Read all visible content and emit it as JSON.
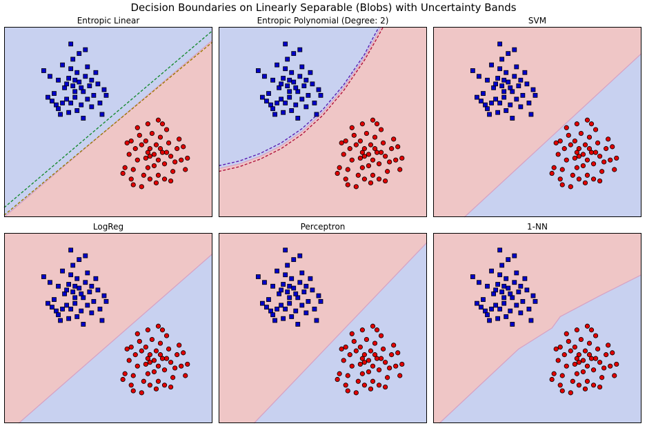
{
  "figure": {
    "title": "Decision Boundaries on Linearly Separable (Blobs) with Uncertainty Bands"
  },
  "colors": {
    "region_blue": "#c8d1f0",
    "region_red": "#efc6c6",
    "blue_marker": "#0000c8",
    "red_marker": "#e00000",
    "marker_edge": "#000000",
    "boundary": "#d6a3c4",
    "band_green": "#188a30",
    "band_olive": "#9a7a00",
    "band_purple": "#5a1ab0",
    "band_crimson": "#b0103c"
  },
  "chart_data": [
    {
      "type": "scatter",
      "title": "Entropic Linear",
      "xlim": [
        0,
        10
      ],
      "ylim": [
        0,
        10
      ],
      "upper_region": "blue",
      "lower_region": "red",
      "boundary": [
        [
          0,
          0
        ],
        [
          10,
          9.3
        ]
      ],
      "bands": [
        {
          "color": "band_green",
          "points": [
            [
              0,
              0.5
            ],
            [
              10,
              9.8
            ]
          ]
        },
        {
          "color": "band_olive",
          "points": [
            [
              0,
              0.1
            ],
            [
              10,
              9.2
            ]
          ]
        }
      ]
    },
    {
      "type": "scatter",
      "title": "Entropic Polynomial (Degree: 2)",
      "xlim": [
        0,
        10
      ],
      "ylim": [
        0,
        10
      ],
      "upper_region": "blue",
      "lower_region": "red",
      "boundary": [
        [
          0,
          2.55
        ],
        [
          1,
          2.8
        ],
        [
          2,
          3.2
        ],
        [
          3,
          3.75
        ],
        [
          4,
          4.5
        ],
        [
          5,
          5.5
        ],
        [
          6,
          6.8
        ],
        [
          7,
          8.4
        ],
        [
          7.5,
          9.4
        ],
        [
          7.8,
          10
        ]
      ],
      "bands": [
        {
          "color": "band_purple",
          "points": [
            [
              0,
              2.7
            ],
            [
              1,
              2.95
            ],
            [
              2,
              3.35
            ],
            [
              3,
              3.9
            ],
            [
              4,
              4.65
            ],
            [
              5,
              5.65
            ],
            [
              6,
              6.95
            ],
            [
              7,
              8.55
            ],
            [
              7.4,
              9.4
            ],
            [
              7.7,
              10
            ]
          ]
        },
        {
          "color": "band_crimson",
          "points": [
            [
              0,
              2.4
            ],
            [
              1,
              2.65
            ],
            [
              2,
              3.05
            ],
            [
              3,
              3.6
            ],
            [
              4,
              4.35
            ],
            [
              5,
              5.35
            ],
            [
              6,
              6.65
            ],
            [
              7,
              8.25
            ],
            [
              7.6,
              9.4
            ],
            [
              7.9,
              10
            ]
          ]
        }
      ]
    },
    {
      "type": "scatter",
      "title": "SVM",
      "xlim": [
        0,
        10
      ],
      "ylim": [
        0,
        10
      ],
      "upper_region": "red",
      "lower_region": "blue",
      "boundary": [
        [
          1.5,
          0
        ],
        [
          10,
          8.6
        ]
      ],
      "bands": []
    },
    {
      "type": "scatter",
      "title": "LogReg",
      "xlim": [
        0,
        10
      ],
      "ylim": [
        0,
        10
      ],
      "upper_region": "red",
      "lower_region": "blue",
      "boundary": [
        [
          0.7,
          0
        ],
        [
          10,
          8.9
        ]
      ],
      "bands": []
    },
    {
      "type": "scatter",
      "title": "Perceptron",
      "xlim": [
        0,
        10
      ],
      "ylim": [
        0,
        10
      ],
      "upper_region": "red",
      "lower_region": "blue",
      "boundary": [
        [
          1.7,
          0
        ],
        [
          10,
          9.5
        ]
      ],
      "bands": []
    },
    {
      "type": "scatter",
      "title": "1-NN",
      "xlim": [
        0,
        10
      ],
      "ylim": [
        0,
        10
      ],
      "upper_region": "red",
      "lower_region": "blue",
      "boundary": [
        [
          0.3,
          0
        ],
        [
          4.1,
          3.9
        ],
        [
          5.7,
          5.0
        ],
        [
          6.1,
          5.6
        ],
        [
          8.0,
          6.7
        ],
        [
          10,
          7.8
        ]
      ],
      "bands": []
    }
  ],
  "scatter_points": {
    "blue_squares": [
      [
        3.1,
        7.3
      ],
      [
        3.3,
        6.9
      ],
      [
        3.5,
        7.6
      ],
      [
        3.2,
        7.8
      ],
      [
        3.6,
        7.1
      ],
      [
        3.8,
        6.6
      ],
      [
        2.9,
        6.8
      ],
      [
        3.4,
        6.3
      ],
      [
        3.9,
        7.4
      ],
      [
        4.1,
        6.9
      ],
      [
        2.6,
        7.2
      ],
      [
        3.0,
        6.2
      ],
      [
        3.7,
        5.9
      ],
      [
        4.3,
        6.4
      ],
      [
        4.0,
        7.9
      ],
      [
        3.3,
        8.3
      ],
      [
        2.8,
        6.0
      ],
      [
        4.5,
        7.0
      ],
      [
        2.4,
        6.5
      ],
      [
        3.5,
        5.6
      ],
      [
        4.2,
        5.8
      ],
      [
        3.1,
        5.5
      ],
      [
        2.7,
        5.4
      ],
      [
        4.6,
        6.0
      ],
      [
        2.2,
        7.4
      ],
      [
        3.6,
        8.6
      ],
      [
        2.5,
        5.9
      ],
      [
        4.8,
        6.7
      ],
      [
        1.9,
        7.7
      ],
      [
        3.8,
        5.2
      ],
      [
        3.2,
        9.1
      ],
      [
        2.3,
        6.1
      ],
      [
        4.4,
        7.6
      ],
      [
        3.0,
        7.0
      ],
      [
        3.4,
        7.2
      ],
      [
        3.7,
        6.8
      ],
      [
        2.8,
        8.0
      ],
      [
        4.0,
        6.2
      ],
      [
        3.9,
        8.8
      ],
      [
        2.6,
        5.7
      ],
      [
        4.7,
        5.4
      ],
      [
        3.4,
        6.6
      ],
      [
        3.2,
        6.0
      ],
      [
        4.2,
        7.2
      ],
      [
        2.1,
        6.3
      ],
      [
        4.9,
        6.4
      ]
    ],
    "red_circles": [
      [
        7.2,
        3.3
      ],
      [
        7.4,
        3.0
      ],
      [
        7.0,
        3.6
      ],
      [
        7.6,
        3.4
      ],
      [
        6.8,
        3.1
      ],
      [
        7.3,
        3.8
      ],
      [
        7.7,
        2.8
      ],
      [
        6.9,
        2.6
      ],
      [
        7.5,
        4.2
      ],
      [
        6.6,
        3.8
      ],
      [
        8.0,
        3.2
      ],
      [
        6.4,
        3.0
      ],
      [
        7.9,
        3.9
      ],
      [
        7.1,
        4.4
      ],
      [
        6.3,
        3.6
      ],
      [
        8.2,
        2.9
      ],
      [
        6.5,
        4.3
      ],
      [
        7.8,
        4.6
      ],
      [
        6.2,
        2.5
      ],
      [
        7.4,
        2.2
      ],
      [
        8.3,
        3.6
      ],
      [
        6.0,
        3.3
      ],
      [
        7.0,
        2.0
      ],
      [
        8.5,
        3.0
      ],
      [
        6.1,
        4.0
      ],
      [
        7.6,
        4.9
      ],
      [
        6.7,
        2.2
      ],
      [
        8.1,
        2.4
      ],
      [
        5.8,
        2.6
      ],
      [
        8.4,
        4.1
      ],
      [
        6.4,
        4.7
      ],
      [
        7.3,
        1.8
      ],
      [
        5.9,
        3.9
      ],
      [
        8.6,
        3.7
      ],
      [
        6.9,
        4.9
      ],
      [
        7.7,
        2.0
      ],
      [
        6.2,
        1.7
      ],
      [
        8.8,
        3.1
      ],
      [
        7.0,
        3.2
      ],
      [
        7.2,
        2.7
      ],
      [
        6.8,
        4.0
      ],
      [
        7.5,
        3.6
      ],
      [
        8.0,
        1.9
      ],
      [
        5.7,
        2.3
      ],
      [
        6.6,
        1.6
      ],
      [
        8.7,
        2.5
      ],
      [
        7.4,
        5.1
      ],
      [
        6.1,
        2.0
      ],
      [
        7.8,
        3.4
      ],
      [
        6.9,
        3.4
      ]
    ]
  }
}
